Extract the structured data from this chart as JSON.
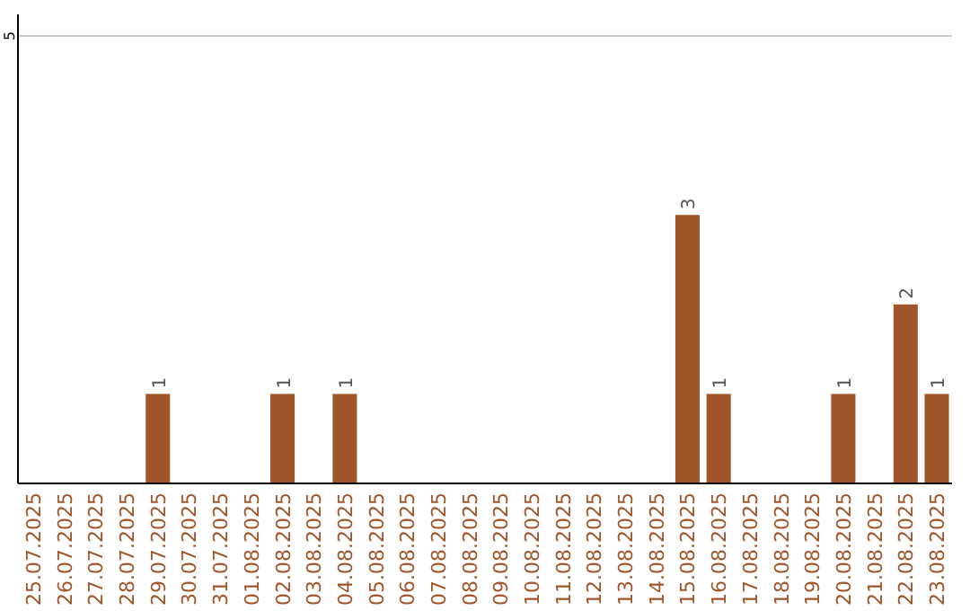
{
  "chart_data": {
    "type": "bar",
    "categories": [
      "25.07.2025",
      "26.07.2025",
      "27.07.2025",
      "28.07.2025",
      "29.07.2025",
      "30.07.2025",
      "31.07.2025",
      "01.08.2025",
      "02.08.2025",
      "03.08.2025",
      "04.08.2025",
      "05.08.2025",
      "06.08.2025",
      "07.08.2025",
      "08.08.2025",
      "09.08.2025",
      "10.08.2025",
      "11.08.2025",
      "12.08.2025",
      "13.08.2025",
      "14.08.2025",
      "15.08.2025",
      "16.08.2025",
      "17.08.2025",
      "18.08.2025",
      "19.08.2025",
      "20.08.2025",
      "21.08.2025",
      "22.08.2025",
      "23.08.2025"
    ],
    "values": [
      0,
      0,
      0,
      0,
      1,
      0,
      0,
      0,
      1,
      0,
      1,
      0,
      0,
      0,
      0,
      0,
      0,
      0,
      0,
      0,
      0,
      3,
      1,
      0,
      0,
      0,
      1,
      0,
      2,
      1
    ],
    "value_labels": [
      null,
      null,
      null,
      null,
      "1",
      null,
      null,
      null,
      "1",
      null,
      "1",
      null,
      null,
      null,
      null,
      null,
      null,
      null,
      null,
      null,
      null,
      "3",
      "1",
      null,
      null,
      null,
      "1",
      null,
      "2",
      "1"
    ],
    "color": "#a0562a",
    "ylim": [
      0,
      5
    ],
    "yticks": [
      5
    ],
    "ref_lines": [
      {
        "axis": "y",
        "value": 5,
        "color": "#cccccc"
      }
    ]
  }
}
